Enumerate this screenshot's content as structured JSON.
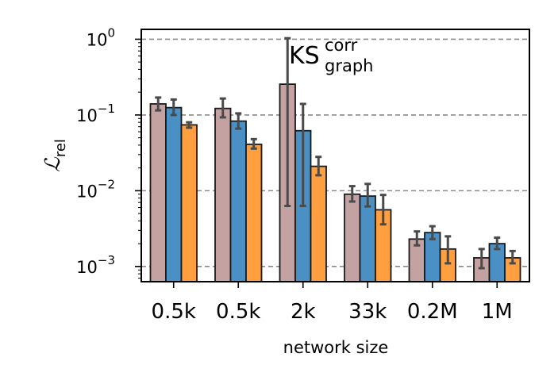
{
  "chart_data": {
    "type": "bar",
    "yscale": "log",
    "ylim": [
      0.00063,
      1.35
    ],
    "grid": "y-major-dashed",
    "categories": [
      "0.5k",
      "0.5k",
      "2k",
      "33k",
      "0.2M",
      "1M"
    ],
    "xlabel": "network size",
    "ylabel": {
      "main": "ℒ",
      "sub": "rel"
    },
    "annotation": {
      "main": "KS",
      "sup": "corr",
      "sub": "graph"
    },
    "y_ticks": [
      {
        "value": 0.001,
        "base": "10",
        "exp": "−3"
      },
      {
        "value": 0.01,
        "base": "10",
        "exp": "−2"
      },
      {
        "value": 0.1,
        "base": "10",
        "exp": "−1"
      },
      {
        "value": 1,
        "base": "10",
        "exp": "0"
      }
    ],
    "series": [
      {
        "color": "#c4a2a2",
        "values": [
          0.14,
          0.122,
          0.255,
          0.009,
          0.0023,
          0.0013
        ],
        "err_low": [
          0.115,
          0.093,
          0.0063,
          0.0072,
          0.0019,
          0.00095
        ],
        "err_high": [
          0.17,
          0.165,
          1.03,
          0.0115,
          0.0029,
          0.0017
        ]
      },
      {
        "color": "#4a90c4",
        "values": [
          0.125,
          0.083,
          0.062,
          0.0085,
          0.0028,
          0.002
        ],
        "err_low": [
          0.1,
          0.066,
          0.0063,
          0.0062,
          0.0023,
          0.0017
        ],
        "err_high": [
          0.16,
          0.105,
          0.14,
          0.0123,
          0.0034,
          0.0024
        ]
      },
      {
        "color": "#ff9f40",
        "values": [
          0.074,
          0.041,
          0.021,
          0.0056,
          0.0017,
          0.0013
        ],
        "err_low": [
          0.068,
          0.036,
          0.016,
          0.0036,
          0.0011,
          0.0011
        ],
        "err_high": [
          0.08,
          0.048,
          0.028,
          0.0088,
          0.0025,
          0.0016
        ]
      }
    ]
  }
}
